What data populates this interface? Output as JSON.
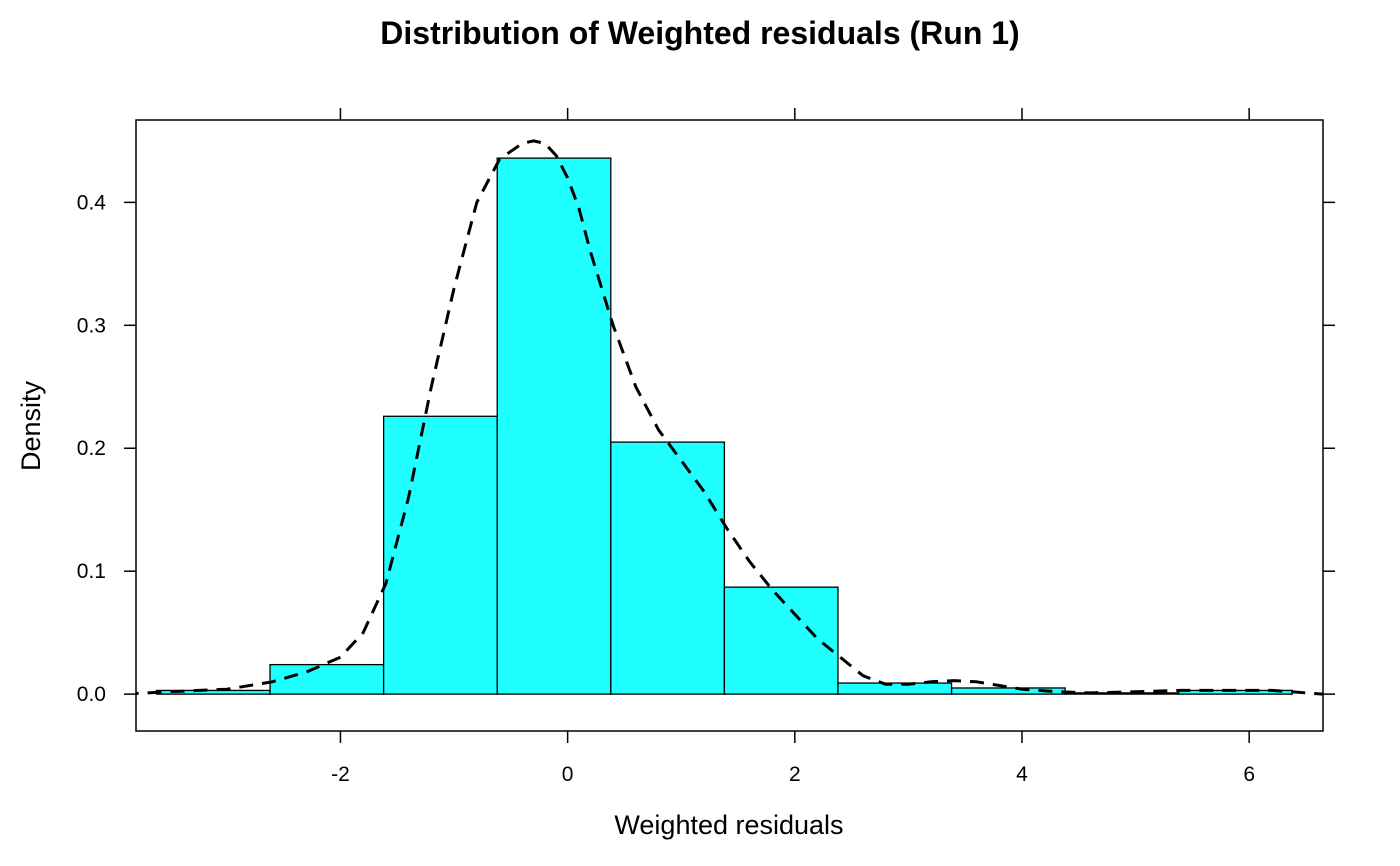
{
  "chart_data": {
    "type": "bar",
    "title": "Distribution of Weighted residuals (Run 1)",
    "xlabel": "Weighted residuals",
    "ylabel": "Density",
    "xlim": [
      -3.8,
      6.65
    ],
    "ylim": [
      -0.03,
      0.467
    ],
    "x_ticks": [
      -2,
      0,
      2,
      4,
      6
    ],
    "y_ticks": [
      0.0,
      0.1,
      0.2,
      0.3,
      0.4
    ],
    "x_tick_labels": [
      "-2",
      "0",
      "2",
      "4",
      "6"
    ],
    "y_tick_labels": [
      "0.0",
      "0.1",
      "0.2",
      "0.3",
      "0.4"
    ],
    "histogram": {
      "bin_edges": [
        -3.62,
        -2.62,
        -1.62,
        -0.62,
        0.38,
        1.38,
        2.38,
        3.38,
        4.38,
        5.38,
        6.38
      ],
      "density": [
        0.003,
        0.024,
        0.226,
        0.436,
        0.205,
        0.087,
        0.009,
        0.005,
        0.001,
        0.003
      ],
      "fill_color": "#1FFFFF",
      "edge_color": "#000000"
    },
    "density_curve": {
      "style": "dashed",
      "color": "#000000",
      "x": [
        -3.9,
        -3.5,
        -3.0,
        -2.6,
        -2.3,
        -2.0,
        -1.8,
        -1.6,
        -1.4,
        -1.2,
        -1.0,
        -0.8,
        -0.6,
        -0.4,
        -0.3,
        -0.2,
        -0.1,
        0.0,
        0.1,
        0.2,
        0.4,
        0.6,
        0.8,
        1.0,
        1.2,
        1.4,
        1.6,
        1.8,
        2.0,
        2.2,
        2.4,
        2.6,
        2.8,
        3.0,
        3.2,
        3.4,
        3.6,
        3.8,
        4.0,
        4.3,
        4.6,
        5.0,
        5.4,
        5.8,
        6.2,
        6.65
      ],
      "y": [
        0.0,
        0.002,
        0.004,
        0.01,
        0.018,
        0.03,
        0.05,
        0.09,
        0.16,
        0.25,
        0.33,
        0.4,
        0.435,
        0.448,
        0.45,
        0.448,
        0.438,
        0.42,
        0.395,
        0.36,
        0.3,
        0.25,
        0.215,
        0.19,
        0.165,
        0.135,
        0.108,
        0.085,
        0.065,
        0.045,
        0.03,
        0.015,
        0.008,
        0.008,
        0.01,
        0.011,
        0.01,
        0.007,
        0.004,
        0.002,
        0.001,
        0.002,
        0.003,
        0.003,
        0.003,
        0.0
      ]
    }
  }
}
